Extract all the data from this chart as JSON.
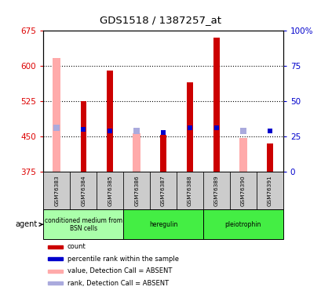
{
  "title": "GDS1518 / 1387257_at",
  "samples": [
    "GSM76383",
    "GSM76384",
    "GSM76385",
    "GSM76386",
    "GSM76387",
    "GSM76388",
    "GSM76389",
    "GSM76390",
    "GSM76391"
  ],
  "count_values": [
    null,
    525,
    590,
    null,
    453,
    565,
    660,
    null,
    435
  ],
  "absent_value_bars": [
    618,
    null,
    null,
    457,
    null,
    null,
    null,
    447,
    null
  ],
  "percentile_rank": [
    null,
    465,
    462,
    null,
    458,
    468,
    468,
    null,
    462
  ],
  "absent_rank": [
    468,
    null,
    null,
    462,
    null,
    null,
    null,
    462,
    null
  ],
  "ylim": [
    375,
    675
  ],
  "yticks": [
    375,
    450,
    525,
    600,
    675
  ],
  "y2lim": [
    0,
    100
  ],
  "y2ticks": [
    0,
    25,
    50,
    75,
    100
  ],
  "count_color": "#cc0000",
  "absent_value_color": "#ffaaaa",
  "rank_color": "#0000cc",
  "absent_rank_color": "#aaaadd",
  "left_tick_color": "#dd0000",
  "right_tick_color": "#0000cc",
  "grid_color": "#000000",
  "bg_color": "#ffffff",
  "sample_box_color": "#cccccc",
  "agent_group1_color": "#aaffaa",
  "agent_group2_color": "#44ee44",
  "agent_groups": [
    {
      "label": "conditioned medium from\nBSN cells",
      "start": 0,
      "end": 3
    },
    {
      "label": "heregulin",
      "start": 3,
      "end": 6
    },
    {
      "label": "pleiotrophin",
      "start": 6,
      "end": 9
    }
  ],
  "legend_items": [
    {
      "color": "#cc0000",
      "label": "count",
      "marker": "s"
    },
    {
      "color": "#0000cc",
      "label": "percentile rank within the sample",
      "marker": "s"
    },
    {
      "color": "#ffaaaa",
      "label": "value, Detection Call = ABSENT",
      "marker": "s"
    },
    {
      "color": "#aaaadd",
      "label": "rank, Detection Call = ABSENT",
      "marker": "s"
    }
  ]
}
